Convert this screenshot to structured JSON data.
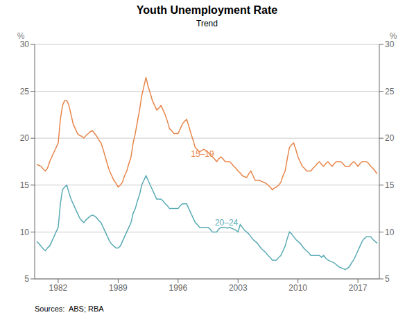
{
  "chart_data": {
    "type": "line",
    "title": "Youth Unemployment Rate",
    "subtitle": "Trend",
    "source": "Sources:  ABS; RBA",
    "ylabel": "%",
    "y2label": "%",
    "x": [
      1979.5,
      1980,
      1980.25,
      1980.5,
      1980.75,
      1981,
      1981.25,
      1981.5,
      1981.75,
      1982,
      1982.25,
      1982.5,
      1982.75,
      1983,
      1983.25,
      1983.5,
      1983.75,
      1984,
      1984.25,
      1984.5,
      1984.75,
      1985,
      1985.25,
      1985.5,
      1985.75,
      1986,
      1986.25,
      1986.5,
      1986.75,
      1987,
      1987.25,
      1987.5,
      1987.75,
      1988,
      1988.25,
      1988.5,
      1988.75,
      1989,
      1989.25,
      1989.5,
      1989.75,
      1990,
      1990.25,
      1990.5,
      1990.75,
      1991,
      1991.25,
      1991.5,
      1991.75,
      1992,
      1992.25,
      1992.5,
      1992.75,
      1993,
      1993.25,
      1993.5,
      1993.75,
      1994,
      1994.25,
      1994.5,
      1994.75,
      1995,
      1995.25,
      1995.5,
      1995.75,
      1996,
      1996.25,
      1996.5,
      1996.75,
      1997,
      1997.25,
      1997.5,
      1997.75,
      1998,
      1998.25,
      1998.5,
      1998.75,
      1999,
      1999.25,
      1999.5,
      1999.75,
      2000,
      2000.25,
      2000.5,
      2000.75,
      2001,
      2001.25,
      2001.5,
      2001.75,
      2002,
      2002.25,
      2002.5,
      2002.75,
      2003,
      2003.25,
      2003.5,
      2003.75,
      2004,
      2004.25,
      2004.5,
      2004.75,
      2005,
      2005.25,
      2005.5,
      2005.75,
      2006,
      2006.25,
      2006.5,
      2006.75,
      2007,
      2007.25,
      2007.5,
      2007.75,
      2008,
      2008.25,
      2008.5,
      2008.75,
      2009,
      2009.25,
      2009.5,
      2009.75,
      2010,
      2010.25,
      2010.5,
      2010.75,
      2011,
      2011.25,
      2011.5,
      2011.75,
      2012,
      2012.25,
      2012.5,
      2012.75,
      2013,
      2013.25,
      2013.5,
      2013.75,
      2014,
      2014.25,
      2014.5,
      2014.75,
      2015,
      2015.25,
      2015.5,
      2015.75,
      2016,
      2016.25,
      2016.5,
      2016.75,
      2017,
      2017.25,
      2017.5,
      2017.75,
      2018,
      2018.25,
      2018.5,
      2018.75,
      2019,
      2019.25
    ],
    "xlim": [
      1979.25,
      2019.5
    ],
    "xticks": [
      1982,
      1989,
      1996,
      2003,
      2010,
      2017
    ],
    "ylim": [
      5,
      30
    ],
    "yticks": [
      5,
      10,
      15,
      20,
      25,
      30
    ],
    "y2lim": [
      5,
      30
    ],
    "y2ticks": [
      5,
      10,
      15,
      20,
      25,
      30
    ],
    "grid": true,
    "series": [
      {
        "name": "15–19",
        "color": "#E8854A",
        "values": [
          17.2,
          17.0,
          16.7,
          16.5,
          16.8,
          17.5,
          18.0,
          18.5,
          19.0,
          19.5,
          22.0,
          23.5,
          24.0,
          24.0,
          23.5,
          22.5,
          21.5,
          21.0,
          20.5,
          20.3,
          20.2,
          20.0,
          20.3,
          20.5,
          20.7,
          20.8,
          20.5,
          20.2,
          19.8,
          19.5,
          18.8,
          18.0,
          17.2,
          16.5,
          16.0,
          15.5,
          15.2,
          14.8,
          15.0,
          15.3,
          16.0,
          16.5,
          17.3,
          18.0,
          19.5,
          20.5,
          21.8,
          23.0,
          24.5,
          25.5,
          26.5,
          25.5,
          24.8,
          24.0,
          23.5,
          23.0,
          23.2,
          23.5,
          23.0,
          22.5,
          21.8,
          21.0,
          20.8,
          20.5,
          20.5,
          20.5,
          21.0,
          21.5,
          21.8,
          22.0,
          21.3,
          20.5,
          19.8,
          19.0,
          18.8,
          18.5,
          18.7,
          18.8,
          18.7,
          18.5,
          18.2,
          18.0,
          17.8,
          17.5,
          17.8,
          18.0,
          17.8,
          17.5,
          17.5,
          17.5,
          17.3,
          17.0,
          16.8,
          16.5,
          16.3,
          16.0,
          15.9,
          15.8,
          16.2,
          16.5,
          16.0,
          15.5,
          15.5,
          15.5,
          15.4,
          15.3,
          15.2,
          15.0,
          14.8,
          14.5,
          14.7,
          14.8,
          15.0,
          15.3,
          16.0,
          16.5,
          17.8,
          19.0,
          19.3,
          19.5,
          18.8,
          18.0,
          17.5,
          17.0,
          16.8,
          16.5,
          16.5,
          16.5,
          16.8,
          17.0,
          17.3,
          17.5,
          17.2,
          17.0,
          17.3,
          17.5,
          17.2,
          17.0,
          17.3,
          17.5,
          17.5,
          17.5,
          17.3,
          17.0,
          17.0,
          17.0,
          17.3,
          17.5,
          17.3,
          17.0,
          17.3,
          17.5,
          17.5,
          17.5,
          17.3,
          17.0,
          16.8,
          16.5,
          16.2
        ]
      },
      {
        "name": "20–24",
        "color": "#5AABB5",
        "values": [
          9.0,
          8.5,
          8.2,
          8.0,
          8.3,
          8.5,
          9.0,
          9.5,
          10.0,
          10.5,
          13.0,
          14.5,
          14.8,
          15.0,
          14.2,
          13.5,
          13.0,
          12.5,
          12.0,
          11.5,
          11.2,
          11.0,
          11.3,
          11.5,
          11.7,
          11.8,
          11.7,
          11.5,
          11.2,
          11.0,
          10.5,
          10.0,
          9.5,
          9.0,
          8.7,
          8.5,
          8.3,
          8.3,
          8.5,
          9.0,
          9.5,
          10.0,
          10.5,
          11.0,
          12.0,
          12.5,
          13.3,
          14.0,
          15.0,
          15.5,
          16.0,
          15.5,
          15.0,
          14.5,
          14.0,
          13.5,
          13.5,
          13.5,
          13.3,
          13.0,
          12.8,
          12.5,
          12.5,
          12.5,
          12.5,
          12.5,
          12.8,
          13.0,
          13.0,
          13.0,
          12.5,
          12.0,
          11.5,
          11.0,
          10.8,
          10.5,
          10.5,
          10.5,
          10.5,
          10.5,
          10.3,
          10.0,
          10.0,
          10.0,
          10.3,
          10.5,
          10.5,
          10.5,
          10.4,
          10.5,
          10.4,
          10.3,
          10.2,
          10.0,
          10.8,
          10.5,
          10.2,
          10.0,
          9.8,
          9.5,
          9.2,
          9.0,
          8.8,
          8.5,
          8.2,
          8.0,
          7.8,
          7.5,
          7.3,
          7.0,
          7.0,
          7.0,
          7.3,
          7.5,
          8.0,
          8.5,
          9.3,
          10.0,
          9.8,
          9.5,
          9.2,
          9.0,
          8.8,
          8.5,
          8.2,
          8.0,
          7.8,
          7.5,
          7.5,
          7.5,
          7.5,
          7.5,
          7.3,
          7.5,
          7.2,
          7.0,
          6.9,
          6.8,
          6.7,
          6.5,
          6.3,
          6.2,
          6.1,
          6.0,
          6.1,
          6.3,
          6.7,
          7.0,
          7.5,
          8.0,
          8.5,
          9.0,
          9.3,
          9.5,
          9.5,
          9.5,
          9.2,
          9.0,
          8.8
        ]
      }
    ],
    "annotations": [
      {
        "text": "15–19",
        "x": 1997.5,
        "y": 18.3,
        "color": "#E8854A"
      },
      {
        "text": "20–24",
        "x": 2000.3,
        "y": 11.0,
        "color": "#5AABB5"
      }
    ]
  }
}
